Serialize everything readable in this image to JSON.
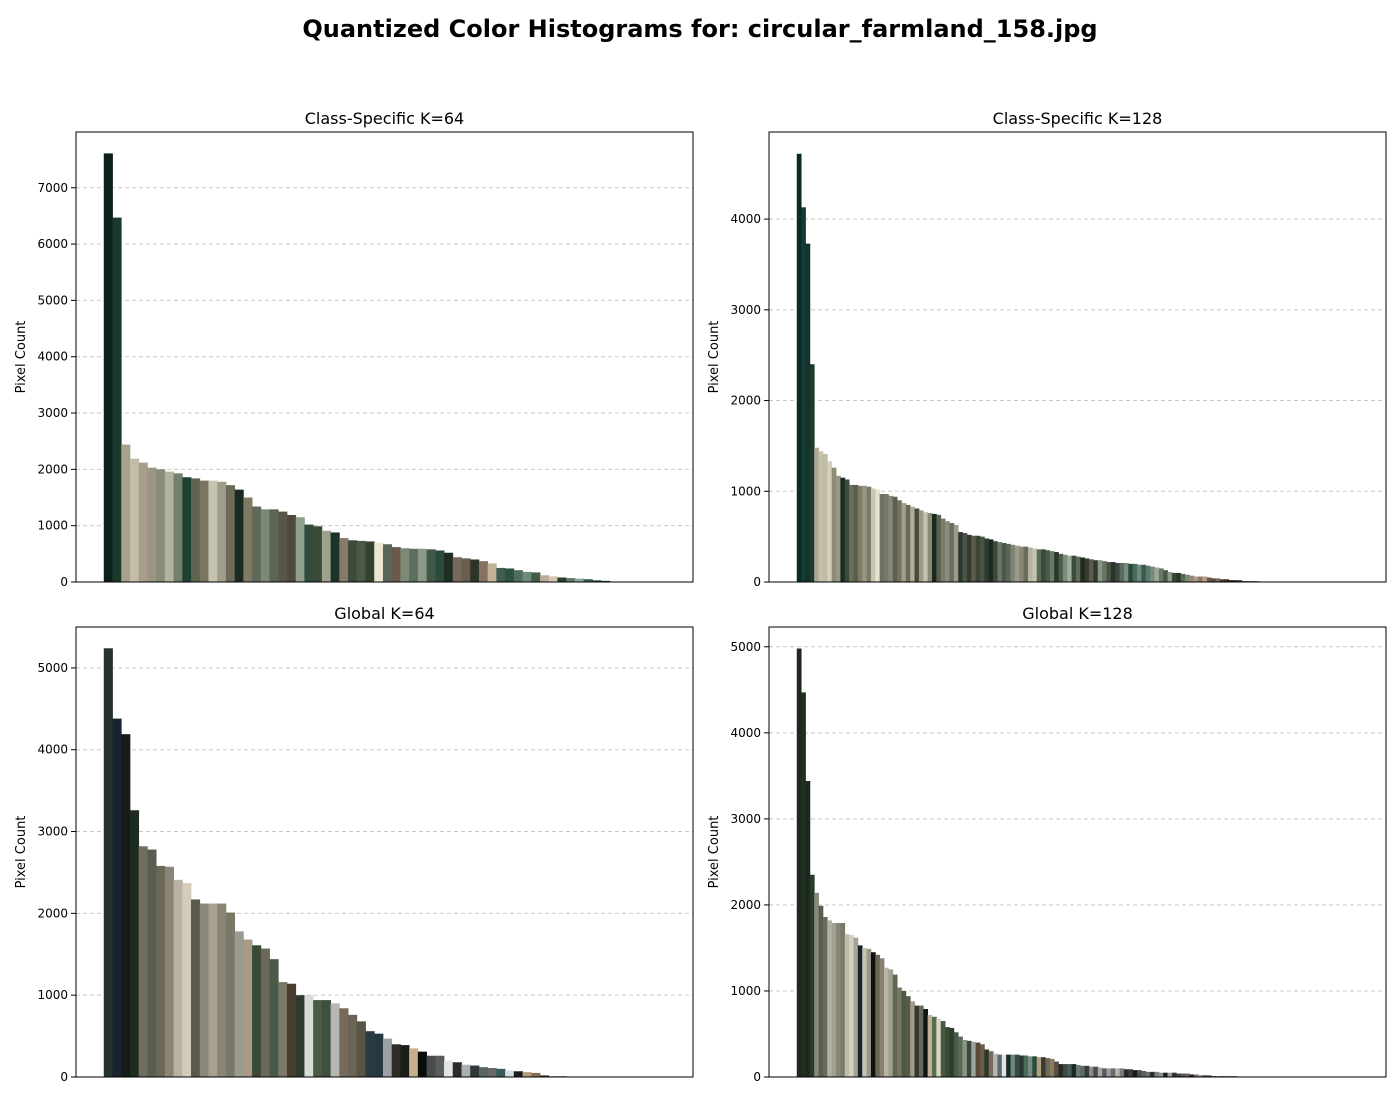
{
  "title": "Quantized Color Histograms for: circular_farmland_158.jpg",
  "chart_data": [
    {
      "type": "bar",
      "title": "Class-Specific K=64",
      "ylabel": "Pixel Count",
      "xlabel": "",
      "ylim": [
        0,
        7990
      ],
      "yticks": [
        0,
        1000,
        2000,
        3000,
        4000,
        5000,
        6000,
        7000
      ],
      "grid": "y-dashed",
      "values": [
        7610,
        6470,
        2440,
        2190,
        2120,
        2030,
        2000,
        1960,
        1930,
        1860,
        1840,
        1800,
        1800,
        1780,
        1720,
        1640,
        1500,
        1340,
        1290,
        1290,
        1250,
        1190,
        1150,
        1020,
        990,
        910,
        880,
        780,
        740,
        730,
        720,
        700,
        670,
        620,
        600,
        590,
        590,
        580,
        560,
        520,
        440,
        420,
        400,
        370,
        330,
        250,
        240,
        210,
        180,
        170,
        120,
        100,
        80,
        70,
        60,
        50,
        30,
        20
      ],
      "colors": [
        "#0d211c",
        "#1b3a2c",
        "#a6a08c",
        "#c2bca8",
        "#a89d86",
        "#9a9683",
        "#8a8b78",
        "#b2b4a1",
        "#75806c",
        "#1f4233",
        "#5c6450",
        "#7b7560",
        "#c6c4b0",
        "#a29c8a",
        "#6e6b57",
        "#1b2b21",
        "#807a64",
        "#606957",
        "#7b8875",
        "#5c6553",
        "#5a5544",
        "#4e4a3c",
        "#909e8c",
        "#304a3c",
        "#3b4a36",
        "#9ca18c",
        "#1e3327",
        "#857a66",
        "#3d4a38",
        "#4b5a44",
        "#34412e",
        "#ede6d4",
        "#5a6657",
        "#6a5a4a",
        "#7d8a76",
        "#5d7060",
        "#8b9a87",
        "#405948",
        "#2e4a38",
        "#1f2e25",
        "#77695a",
        "#6a5c4e",
        "#2d3528",
        "#857260",
        "#c4b294",
        "#3f6050",
        "#2a5240",
        "#4f6e5e",
        "#6e8a78",
        "#3f5c4c",
        "#b8ad98",
        "#d4c6b0",
        "#2a3d30",
        "#5e7c6c",
        "#8ca898",
        "#3a5e4e",
        "#2c4a3a",
        "#1f3a2e"
      ]
    },
    {
      "type": "bar",
      "title": "Class-Specific K=128",
      "ylabel": "Pixel Count",
      "xlabel": "",
      "ylim": [
        0,
        4960
      ],
      "yticks": [
        0,
        1000,
        2000,
        3000,
        4000
      ],
      "grid": "y-dashed",
      "values": [
        4720,
        4130,
        3730,
        2400,
        1480,
        1440,
        1410,
        1330,
        1260,
        1170,
        1150,
        1130,
        1070,
        1070,
        1060,
        1060,
        1050,
        1030,
        1020,
        970,
        970,
        950,
        940,
        900,
        870,
        850,
        830,
        810,
        790,
        770,
        760,
        750,
        740,
        700,
        670,
        650,
        630,
        550,
        540,
        520,
        510,
        510,
        500,
        480,
        470,
        450,
        440,
        430,
        420,
        410,
        400,
        390,
        390,
        380,
        370,
        360,
        360,
        350,
        340,
        330,
        310,
        300,
        290,
        290,
        280,
        270,
        260,
        250,
        240,
        240,
        230,
        220,
        220,
        210,
        210,
        210,
        200,
        200,
        190,
        190,
        180,
        170,
        160,
        150,
        130,
        110,
        100,
        100,
        90,
        80,
        70,
        60,
        60,
        60,
        50,
        40,
        40,
        30,
        30,
        20,
        20,
        20,
        10,
        10,
        10,
        10,
        5,
        5
      ],
      "colors": [
        "#0b2a26",
        "#123b33",
        "#16332b",
        "#1d3a2e",
        "#aea894",
        "#c4c0ac",
        "#bfbba7",
        "#d2cfbc",
        "#8d8a75",
        "#959885",
        "#1a2c24",
        "#3a4a3c",
        "#6b6e5a",
        "#5a5e4c",
        "#7c7c68",
        "#9a9682",
        "#767a66",
        "#c8c4b0",
        "#e4e0cc",
        "#6e7262",
        "#7a7866",
        "#8a8676",
        "#5a6054",
        "#76705e",
        "#a29e8a",
        "#686a58",
        "#b0ac98",
        "#48483c",
        "#9c9a86",
        "#c4c2ae",
        "#8a8a78",
        "#1a281e",
        "#5a5e4e",
        "#7c7c6a",
        "#8c8c7a",
        "#6c6c5c",
        "#9c9c8a",
        "#2a3a30",
        "#4c5446",
        "#343a2e",
        "#5c5a4a",
        "#3a4438",
        "#4a5242",
        "#2c3c32",
        "#1c2a22",
        "#3c4a3e",
        "#6c7666",
        "#4c5848",
        "#5c6656",
        "#7c8676",
        "#9c9a88",
        "#8a8674",
        "#6a6a5a",
        "#b4b4a0",
        "#c4c4b0",
        "#5a6a58",
        "#3a4a3a",
        "#4a5a4a",
        "#6a7a6a",
        "#2a3a2a",
        "#4e5c4c",
        "#7e8c7c",
        "#9eac9c",
        "#3e4c3c",
        "#5e6c5c",
        "#1e2c1c",
        "#3a3a2e",
        "#5a5a4e",
        "#2e3a2e",
        "#8a9484",
        "#6a7464",
        "#4a5444",
        "#2a342a",
        "#3a4a3e",
        "#5a6a5e",
        "#7a8a7e",
        "#2a4a3e",
        "#4a6a5e",
        "#6a8a7e",
        "#3a5a4e",
        "#5a7a6e",
        "#7a8a7a",
        "#9aa89a",
        "#6a7868",
        "#4a5848",
        "#8a9888",
        "#3a4838",
        "#2a3828",
        "#5a6858",
        "#7a8878",
        "#9a8a7a",
        "#aa9a8a",
        "#8a7a6a",
        "#ba9a8a",
        "#6a5a4a",
        "#5a4a3a",
        "#7a6a5a",
        "#4a3a2a",
        "#3a2a1a",
        "#2a1a0a",
        "#1a2a1a",
        "#2a3a2a",
        "#3a4a3a",
        "#4a5a4a",
        "#5a6a5a",
        "#6a7a6a",
        "#7a8a7a",
        "#8a9a8a"
      ]
    },
    {
      "type": "bar",
      "title": "Global K=64",
      "ylabel": "Pixel Count",
      "xlabel": "",
      "ylim": [
        0,
        5500
      ],
      "yticks": [
        0,
        1000,
        2000,
        3000,
        4000,
        5000
      ],
      "grid": "y-dashed",
      "values": [
        5240,
        4380,
        4190,
        3260,
        2820,
        2780,
        2580,
        2570,
        2410,
        2370,
        2170,
        2120,
        2120,
        2120,
        2010,
        1780,
        1680,
        1610,
        1570,
        1440,
        1160,
        1140,
        1000,
        1000,
        940,
        940,
        900,
        840,
        760,
        680,
        560,
        530,
        470,
        400,
        390,
        350,
        310,
        260,
        260,
        200,
        180,
        150,
        140,
        120,
        110,
        100,
        80,
        70,
        60,
        50,
        20,
        10,
        10
      ],
      "colors": [
        "#26332a",
        "#182430",
        "#151c15",
        "#1d2c1e",
        "#6f6e60",
        "#5a5e50",
        "#6c6858",
        "#8a8474",
        "#b8b2a2",
        "#d4ccb8",
        "#5a5a4c",
        "#8c8878",
        "#a8a090",
        "#8a8676",
        "#7a7866",
        "#9a9c90",
        "#a89a84",
        "#3a4a36",
        "#6a6858",
        "#4a5a48",
        "#7a7866",
        "#4a3e30",
        "#2e3a2e",
        "#d8dcd8",
        "#4a5a44",
        "#3e5040",
        "#b4b8b0",
        "#786a5a",
        "#6a6454",
        "#5a5444",
        "#2a3a44",
        "#243a40",
        "#9aa0a4",
        "#2e2e24",
        "#1a1e16",
        "#c8b08c",
        "#0a0c0a",
        "#4a4c4c",
        "#5a5c5c",
        "#e0e4e4",
        "#2a2a26",
        "#a8b0b4",
        "#303838",
        "#5a6464",
        "#6a6a6a",
        "#3a5a5a",
        "#d4dcdc",
        "#181c1c",
        "#b49c80",
        "#8a6e5a",
        "#3a4040",
        "#8a9494",
        "#5a6a6a"
      ]
    },
    {
      "type": "bar",
      "title": "Global K=128",
      "ylabel": "Pixel Count",
      "xlabel": "",
      "ylim": [
        0,
        5230
      ],
      "yticks": [
        0,
        1000,
        2000,
        3000,
        4000,
        5000
      ],
      "grid": "y-dashed",
      "values": [
        4980,
        4470,
        3440,
        2350,
        2140,
        1990,
        1860,
        1820,
        1790,
        1790,
        1790,
        1660,
        1650,
        1620,
        1530,
        1500,
        1490,
        1450,
        1420,
        1380,
        1270,
        1250,
        1190,
        1040,
        1000,
        940,
        880,
        830,
        830,
        790,
        720,
        700,
        680,
        650,
        580,
        570,
        520,
        470,
        430,
        420,
        410,
        400,
        380,
        320,
        300,
        270,
        260,
        260,
        260,
        260,
        260,
        250,
        250,
        240,
        240,
        230,
        230,
        220,
        210,
        180,
        150,
        150,
        150,
        150,
        140,
        130,
        130,
        120,
        120,
        110,
        100,
        100,
        100,
        100,
        100,
        90,
        90,
        80,
        80,
        70,
        60,
        60,
        60,
        50,
        50,
        50,
        50,
        40,
        40,
        40,
        30,
        30,
        20,
        20,
        20,
        10,
        10,
        10,
        10,
        10,
        10
      ],
      "colors": [
        "#1c2a1e",
        "#22301f",
        "#1a2a20",
        "#2a3a2c",
        "#8a8a7a",
        "#5a5e50",
        "#6a6a5a",
        "#b4b0a0",
        "#a0a090",
        "#8a8676",
        "#7a7a6a",
        "#c0bcac",
        "#d4d0c0",
        "#a8a494",
        "#162430",
        "#c8c4b4",
        "#9a9888",
        "#0c1010",
        "#6a6454",
        "#8a8070",
        "#b8b4a4",
        "#a29e8e",
        "#5a6a50",
        "#7a7462",
        "#4a5a44",
        "#5a5a4a",
        "#a49a88",
        "#34382c",
        "#6a6a5c",
        "#121612",
        "#c4b09a",
        "#567050",
        "#d8d4c8",
        "#4a5840",
        "#3a4a36",
        "#2e3e2e",
        "#4a5a48",
        "#5a6a58",
        "#8a9484",
        "#3a4a3a",
        "#a0a4a0",
        "#5a4a3a",
        "#6a5a4a",
        "#2a3a2a",
        "#7a6a5a",
        "#b4b8b4",
        "#5a6a6a",
        "#e0e4e0",
        "#1a2a2a",
        "#6a8a7a",
        "#3a4a4a",
        "#2a3a30",
        "#4a6a5a",
        "#7a8a80",
        "#2a4a3a",
        "#b0a080",
        "#3a3a30",
        "#6a6858",
        "#8a7a60",
        "#5a5040",
        "#2a2a26",
        "#3a4a44",
        "#4a5a54",
        "#1a2a24",
        "#6a7a74",
        "#5a6a64",
        "#3a3a3a",
        "#8a8a8a",
        "#4a4a4a",
        "#aaa89a",
        "#5a5a5a",
        "#9a9a9a",
        "#6a6a6a",
        "#b8b4a8",
        "#7a7a7a",
        "#2a2a2a",
        "#3a4040",
        "#1a1a1a",
        "#4a5050",
        "#5a6060",
        "#6a7070",
        "#2a3030",
        "#7a8080",
        "#8a9090",
        "#1a2020",
        "#9aa0a0",
        "#3a3030",
        "#4a4040",
        "#5a5050",
        "#6a6060",
        "#2a2020",
        "#7a7070",
        "#8a8080",
        "#3a4a50",
        "#4a5a60",
        "#1a2a30",
        "#5a6a70",
        "#2a3a40",
        "#6a7a80",
        "#3a5060",
        "#4a6070"
      ]
    }
  ]
}
